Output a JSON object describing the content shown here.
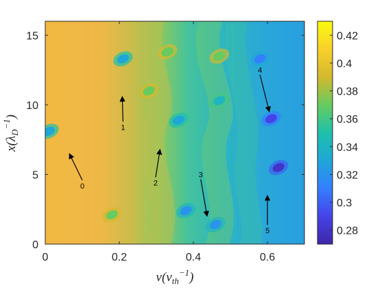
{
  "chart_data": {
    "type": "heatmap",
    "xlabel": "v(v_th^-1)",
    "ylabel": "x(λ_D^-1)",
    "xlim": [
      0,
      0.7
    ],
    "ylim": [
      0,
      16
    ],
    "xticks": [
      0,
      0.2,
      0.4,
      0.6
    ],
    "xtick_labels": [
      "0",
      "0.2",
      "0.4",
      "0.6"
    ],
    "yticks": [
      0,
      5,
      10,
      15
    ],
    "ytick_labels": [
      "0",
      "5",
      "10",
      "15"
    ],
    "colorbar": {
      "range": [
        0.27,
        0.43
      ],
      "ticks": [
        0.28,
        0.3,
        0.32,
        0.34,
        0.36,
        0.38,
        0.4,
        0.42
      ],
      "tick_labels": [
        "0.28",
        "0.3",
        "0.32",
        "0.34",
        "0.36",
        "0.38",
        "0.4",
        "0.42"
      ],
      "colormap": "parula",
      "colors": [
        "#3e26a8",
        "#4643e8",
        "#347ffd",
        "#1fa6d8",
        "#1ec1aa",
        "#67cb5f",
        "#d3b92e",
        "#f9d02b",
        "#f9fb0e"
      ]
    },
    "vortices": [
      {
        "v": 0.01,
        "x": 8.1,
        "value": 0.33
      },
      {
        "v": 0.21,
        "x": 13.3,
        "value": 0.33
      },
      {
        "v": 0.36,
        "x": 8.9,
        "value": 0.33
      },
      {
        "v": 0.33,
        "x": 13.8,
        "value": 0.37
      },
      {
        "v": 0.47,
        "x": 13.5,
        "value": 0.37
      },
      {
        "v": 0.28,
        "x": 11.0,
        "value": 0.37
      },
      {
        "v": 0.47,
        "x": 10.3,
        "value": 0.34
      },
      {
        "v": 0.58,
        "x": 13.3,
        "value": 0.31
      },
      {
        "v": 0.61,
        "x": 9.0,
        "value": 0.29
      },
      {
        "v": 0.63,
        "x": 5.5,
        "value": 0.28
      },
      {
        "v": 0.38,
        "x": 2.4,
        "value": 0.32
      },
      {
        "v": 0.46,
        "x": 1.4,
        "value": 0.32
      },
      {
        "v": 0.18,
        "x": 2.1,
        "value": 0.37
      }
    ],
    "annotations": [
      {
        "label": "0",
        "v": 0.1,
        "x": 4.0,
        "arrow_to_v": 0.065,
        "arrow_to_x": 6.5
      },
      {
        "label": "1",
        "v": 0.21,
        "x": 8.2,
        "arrow_to_v": 0.208,
        "arrow_to_x": 10.6
      },
      {
        "label": "2",
        "v": 0.298,
        "x": 4.2,
        "arrow_to_v": 0.31,
        "arrow_to_x": 6.8
      },
      {
        "label": "3",
        "v": 0.42,
        "x": 4.8,
        "arrow_to_v": 0.437,
        "arrow_to_x": 2.0
      },
      {
        "label": "4",
        "v": 0.58,
        "x": 12.3,
        "arrow_to_v": 0.605,
        "arrow_to_x": 9.5
      },
      {
        "label": "5",
        "v": 0.6,
        "x": 0.8,
        "arrow_to_v": 0.6,
        "arrow_to_x": 3.5
      }
    ]
  }
}
